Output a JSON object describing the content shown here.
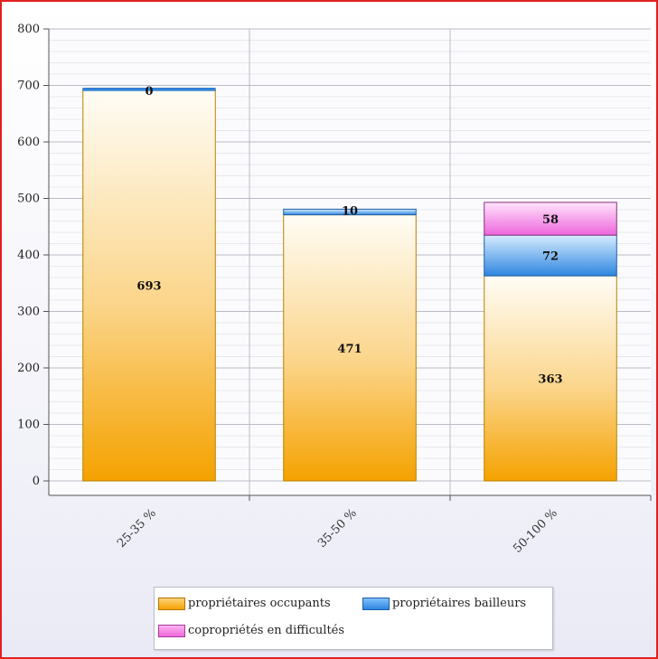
{
  "chart_data": {
    "type": "bar",
    "stacked": true,
    "categories": [
      "25-35 %",
      "35-50 %",
      "50-100 %"
    ],
    "series": [
      {
        "name": "propriétaires occupants",
        "color": "#f5a200",
        "values": [
          693,
          471,
          363
        ]
      },
      {
        "name": "propriétaires bailleurs",
        "color": "#2e86e0",
        "values": [
          0,
          10,
          72
        ]
      },
      {
        "name": "copropriétés en difficultés",
        "color": "#ee66dd",
        "values": [
          0,
          0,
          58
        ]
      }
    ],
    "labels": [
      [
        "693",
        "0",
        ""
      ],
      [
        "471",
        "10",
        ""
      ],
      [
        "363",
        "72",
        "58"
      ]
    ],
    "ylim": [
      0,
      800
    ],
    "yticks": [
      0,
      100,
      200,
      300,
      400,
      500,
      600,
      700,
      800
    ],
    "grid": true,
    "legend_position": "bottom"
  }
}
